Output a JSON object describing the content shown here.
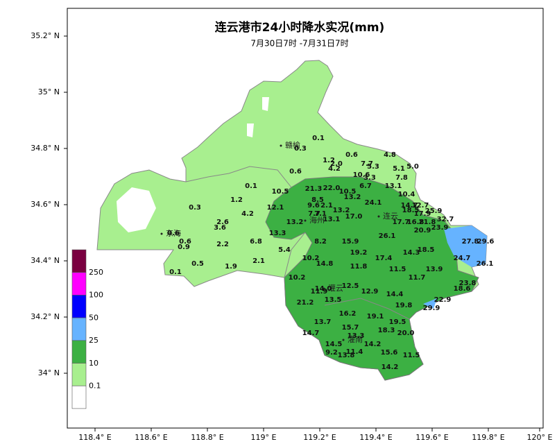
{
  "title": "连云港市24小时降水实况(mm)",
  "subtitle": "7月30日7时 -7月31日7时",
  "x_axis_labels": [
    "118.4° E",
    "118.6° E",
    "118.8° E",
    "119° E",
    "119.2° E",
    "119.4° E",
    "119.6° E",
    "119.8° E",
    "120° E"
  ],
  "y_axis_labels": [
    "35.2° N",
    "35° N",
    "34.8° N",
    "34.6° N",
    "34.4° N",
    "34.2° N",
    "34° N"
  ],
  "legend": {
    "labels": [
      "250",
      "100",
      "50",
      "25",
      "10",
      "0.1"
    ],
    "colors": [
      "#7a0040",
      "#ff00ff",
      "#0000ff",
      "#66b3ff",
      "#3cb043",
      "#a8ef8f",
      "#ffffff"
    ]
  },
  "cities": [
    "赣榆",
    "连云",
    "海州",
    "东海",
    "灌云",
    "灌南"
  ],
  "stations": [
    "0.1",
    "0.3",
    "1.2",
    "2.0",
    "4.2",
    "0.6",
    "7.7",
    "5.3",
    "4.8",
    "5.0",
    "5.1",
    "7.8",
    "0.6",
    "10.6",
    "3.3",
    "6.7",
    "13.1",
    "10.4",
    "0.1",
    "10.5",
    "21.3",
    "22.0",
    "10.5",
    "13.2",
    "8.5",
    "24.1",
    "1.2",
    "0.3",
    "9.6",
    "2.1",
    "12.1",
    "13.2",
    "14.7",
    "12.7",
    "18.5",
    "17.9",
    "25.9",
    "4.2",
    "7.7",
    "7.1",
    "13.1",
    "17.0",
    "17.7",
    "16.8",
    "21.8",
    "32.7",
    "2.6",
    "3.6",
    "13.2",
    "23.9",
    "0.6",
    "0.6",
    "13.3",
    "20.9",
    "26.1",
    "27.8",
    "29.6",
    "6.8",
    "8.2",
    "15.9",
    "0.9",
    "2.2",
    "5.4",
    "19.2",
    "14.3",
    "18.5",
    "24.7",
    "10.2",
    "17.4",
    "26.1",
    "0.5",
    "14.8",
    "11.8",
    "2.1",
    "1.9",
    "11.5",
    "13.9",
    "0.1",
    "10.2",
    "11.7",
    "23.8",
    "12.5",
    "14.0",
    "18.6",
    "11.9",
    "12.9",
    "14.4",
    "22.9",
    "21.2",
    "13.5",
    "19.8",
    "29.9",
    "16.2",
    "19.1",
    "19.5",
    "13.7",
    "15.7",
    "18.3",
    "20.0",
    "14.7",
    "13.3",
    "14.2",
    "14.5",
    "15.6",
    "11.5",
    "9.2",
    "13.8",
    "11.4",
    "14.2"
  ]
}
